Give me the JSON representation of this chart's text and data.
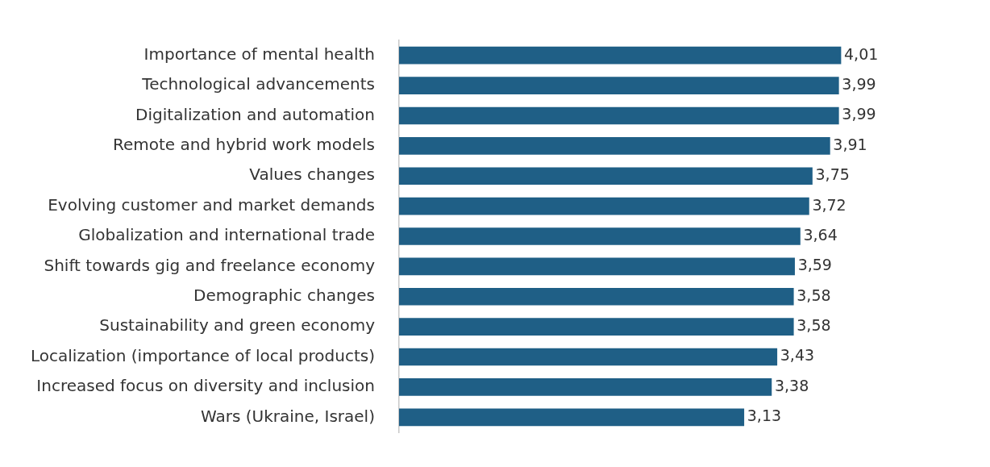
{
  "chart_data": {
    "type": "bar",
    "orientation": "horizontal",
    "categories": [
      "Importance of mental health",
      "Technological advancements",
      "Digitalization and automation",
      "Remote and hybrid work models",
      "Values changes",
      "Evolving customer and market demands",
      "Globalization and international trade",
      "Shift towards gig and freelance economy",
      "Demographic changes",
      "Sustainability and green economy",
      "Localization (importance of local products)",
      "Increased focus on diversity and inclusion",
      "Wars (Ukraine, Israel)"
    ],
    "values": [
      4.01,
      3.99,
      3.99,
      3.91,
      3.75,
      3.72,
      3.64,
      3.59,
      3.58,
      3.58,
      3.43,
      3.38,
      3.13
    ],
    "value_labels": [
      "4,01",
      "3,99",
      "3,99",
      "3,91",
      "3,75",
      "3,72",
      "3,64",
      "3,59",
      "3,58",
      "3,58",
      "3,43",
      "3,38",
      "3,13"
    ],
    "color": "#1f5f86",
    "tick_labels": "y",
    "grid": false,
    "legend": false
  }
}
